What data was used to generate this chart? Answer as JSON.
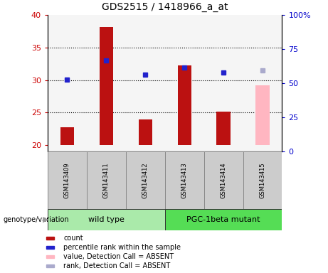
{
  "title": "GDS2515 / 1418966_a_at",
  "samples": [
    "GSM143409",
    "GSM143411",
    "GSM143412",
    "GSM143413",
    "GSM143414",
    "GSM143415"
  ],
  "bar_values": [
    22.7,
    38.2,
    23.9,
    32.3,
    25.1,
    29.2
  ],
  "bar_colors": [
    "#bb1111",
    "#bb1111",
    "#bb1111",
    "#bb1111",
    "#bb1111",
    "#ffb6c1"
  ],
  "dot_values": [
    30.1,
    33.0,
    30.8,
    31.9,
    31.1,
    31.5
  ],
  "dot_colors": [
    "#2222cc",
    "#2222cc",
    "#2222cc",
    "#2222cc",
    "#2222cc",
    "#aaaacc"
  ],
  "absent_flags": [
    false,
    false,
    false,
    false,
    false,
    true
  ],
  "ylim_left": [
    19.0,
    40.0
  ],
  "ylim_right": [
    0,
    100
  ],
  "yticks_left": [
    20,
    25,
    30,
    35,
    40
  ],
  "yticks_right": [
    0,
    25,
    50,
    75,
    100
  ],
  "left_tick_labels": [
    "20",
    "25",
    "30",
    "35",
    "40"
  ],
  "right_tick_labels": [
    "0",
    "25",
    "50",
    "75",
    "100%"
  ],
  "groups": [
    {
      "label": "wild type",
      "samples": [
        0,
        1,
        2
      ],
      "color": "#aaeaaa"
    },
    {
      "label": "PGC-1beta mutant",
      "samples": [
        3,
        4,
        5
      ],
      "color": "#55dd55"
    }
  ],
  "legend_items": [
    {
      "color": "#bb1111",
      "label": "count"
    },
    {
      "color": "#2222cc",
      "label": "percentile rank within the sample"
    },
    {
      "color": "#ffb6c1",
      "label": "value, Detection Call = ABSENT"
    },
    {
      "color": "#aaaacc",
      "label": "rank, Detection Call = ABSENT"
    }
  ],
  "genotype_label": "genotype/variation",
  "ylabel_left_color": "#cc0000",
  "ylabel_right_color": "#0000cc",
  "bar_bottom": 20,
  "bg_color": "#ffffff",
  "plot_bg": "#f5f5f5",
  "sample_box_color": "#cccccc",
  "bar_width": 0.35
}
